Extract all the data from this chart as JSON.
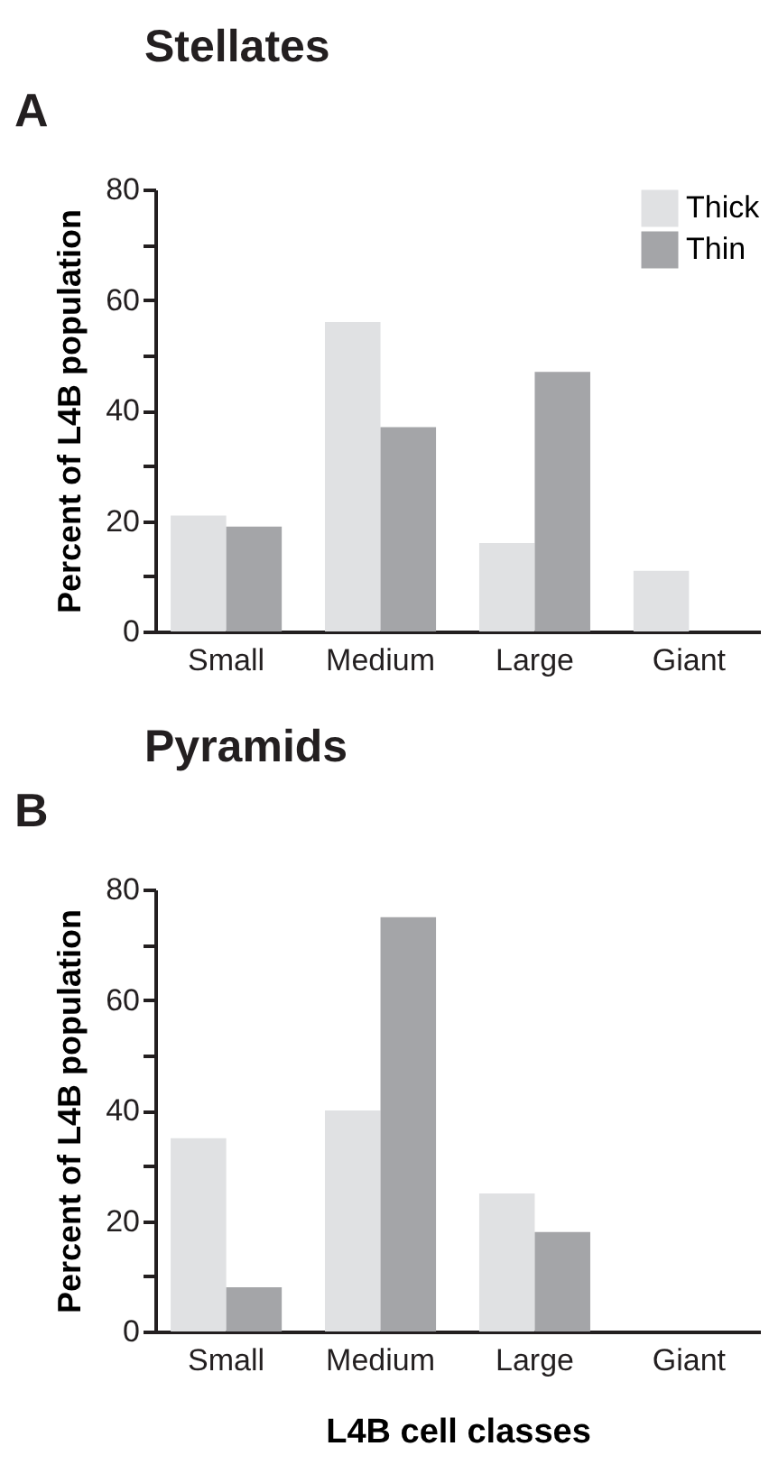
{
  "chart_data": [
    {
      "type": "bar",
      "title": "Stellates",
      "ylabel": "Percent of L4B population",
      "annotations": [
        "A"
      ],
      "categories": [
        "Small",
        "Medium",
        "Large",
        "Giant"
      ],
      "series": [
        {
          "name": "Thick",
          "color": "#e0e1e3",
          "values": [
            21,
            56,
            16,
            11
          ]
        },
        {
          "name": "Thin",
          "color": "#a4a5a8",
          "values": [
            19,
            37,
            47,
            null
          ]
        }
      ],
      "ylim": [
        0,
        80
      ],
      "yticks": [
        0,
        {
          "value": 10,
          "label": null
        },
        20,
        {
          "value": 30,
          "label": null
        },
        40,
        {
          "value": 50,
          "label": null
        },
        60,
        {
          "value": 70,
          "label": null
        },
        80
      ],
      "grid": false,
      "legend": "top right"
    },
    {
      "type": "bar",
      "title": "Pyramids",
      "ylabel": "Percent of L4B population",
      "xlabel": "L4B cell classes",
      "annotations": [
        "B"
      ],
      "categories": [
        "Small",
        "Medium",
        "Large",
        "Giant"
      ],
      "series": [
        {
          "name": "Thick",
          "color": "#e0e1e3",
          "values": [
            35,
            40,
            25,
            null
          ]
        },
        {
          "name": "Thin",
          "color": "#a4a5a8",
          "values": [
            8,
            75,
            18,
            null
          ]
        }
      ],
      "ylim": [
        0,
        80
      ],
      "yticks": [
        0,
        {
          "value": 10,
          "label": null
        },
        20,
        {
          "value": 30,
          "label": null
        },
        40,
        {
          "value": 50,
          "label": null
        },
        60,
        {
          "value": 70,
          "label": null
        },
        80
      ],
      "grid": false,
      "legend": false
    }
  ]
}
